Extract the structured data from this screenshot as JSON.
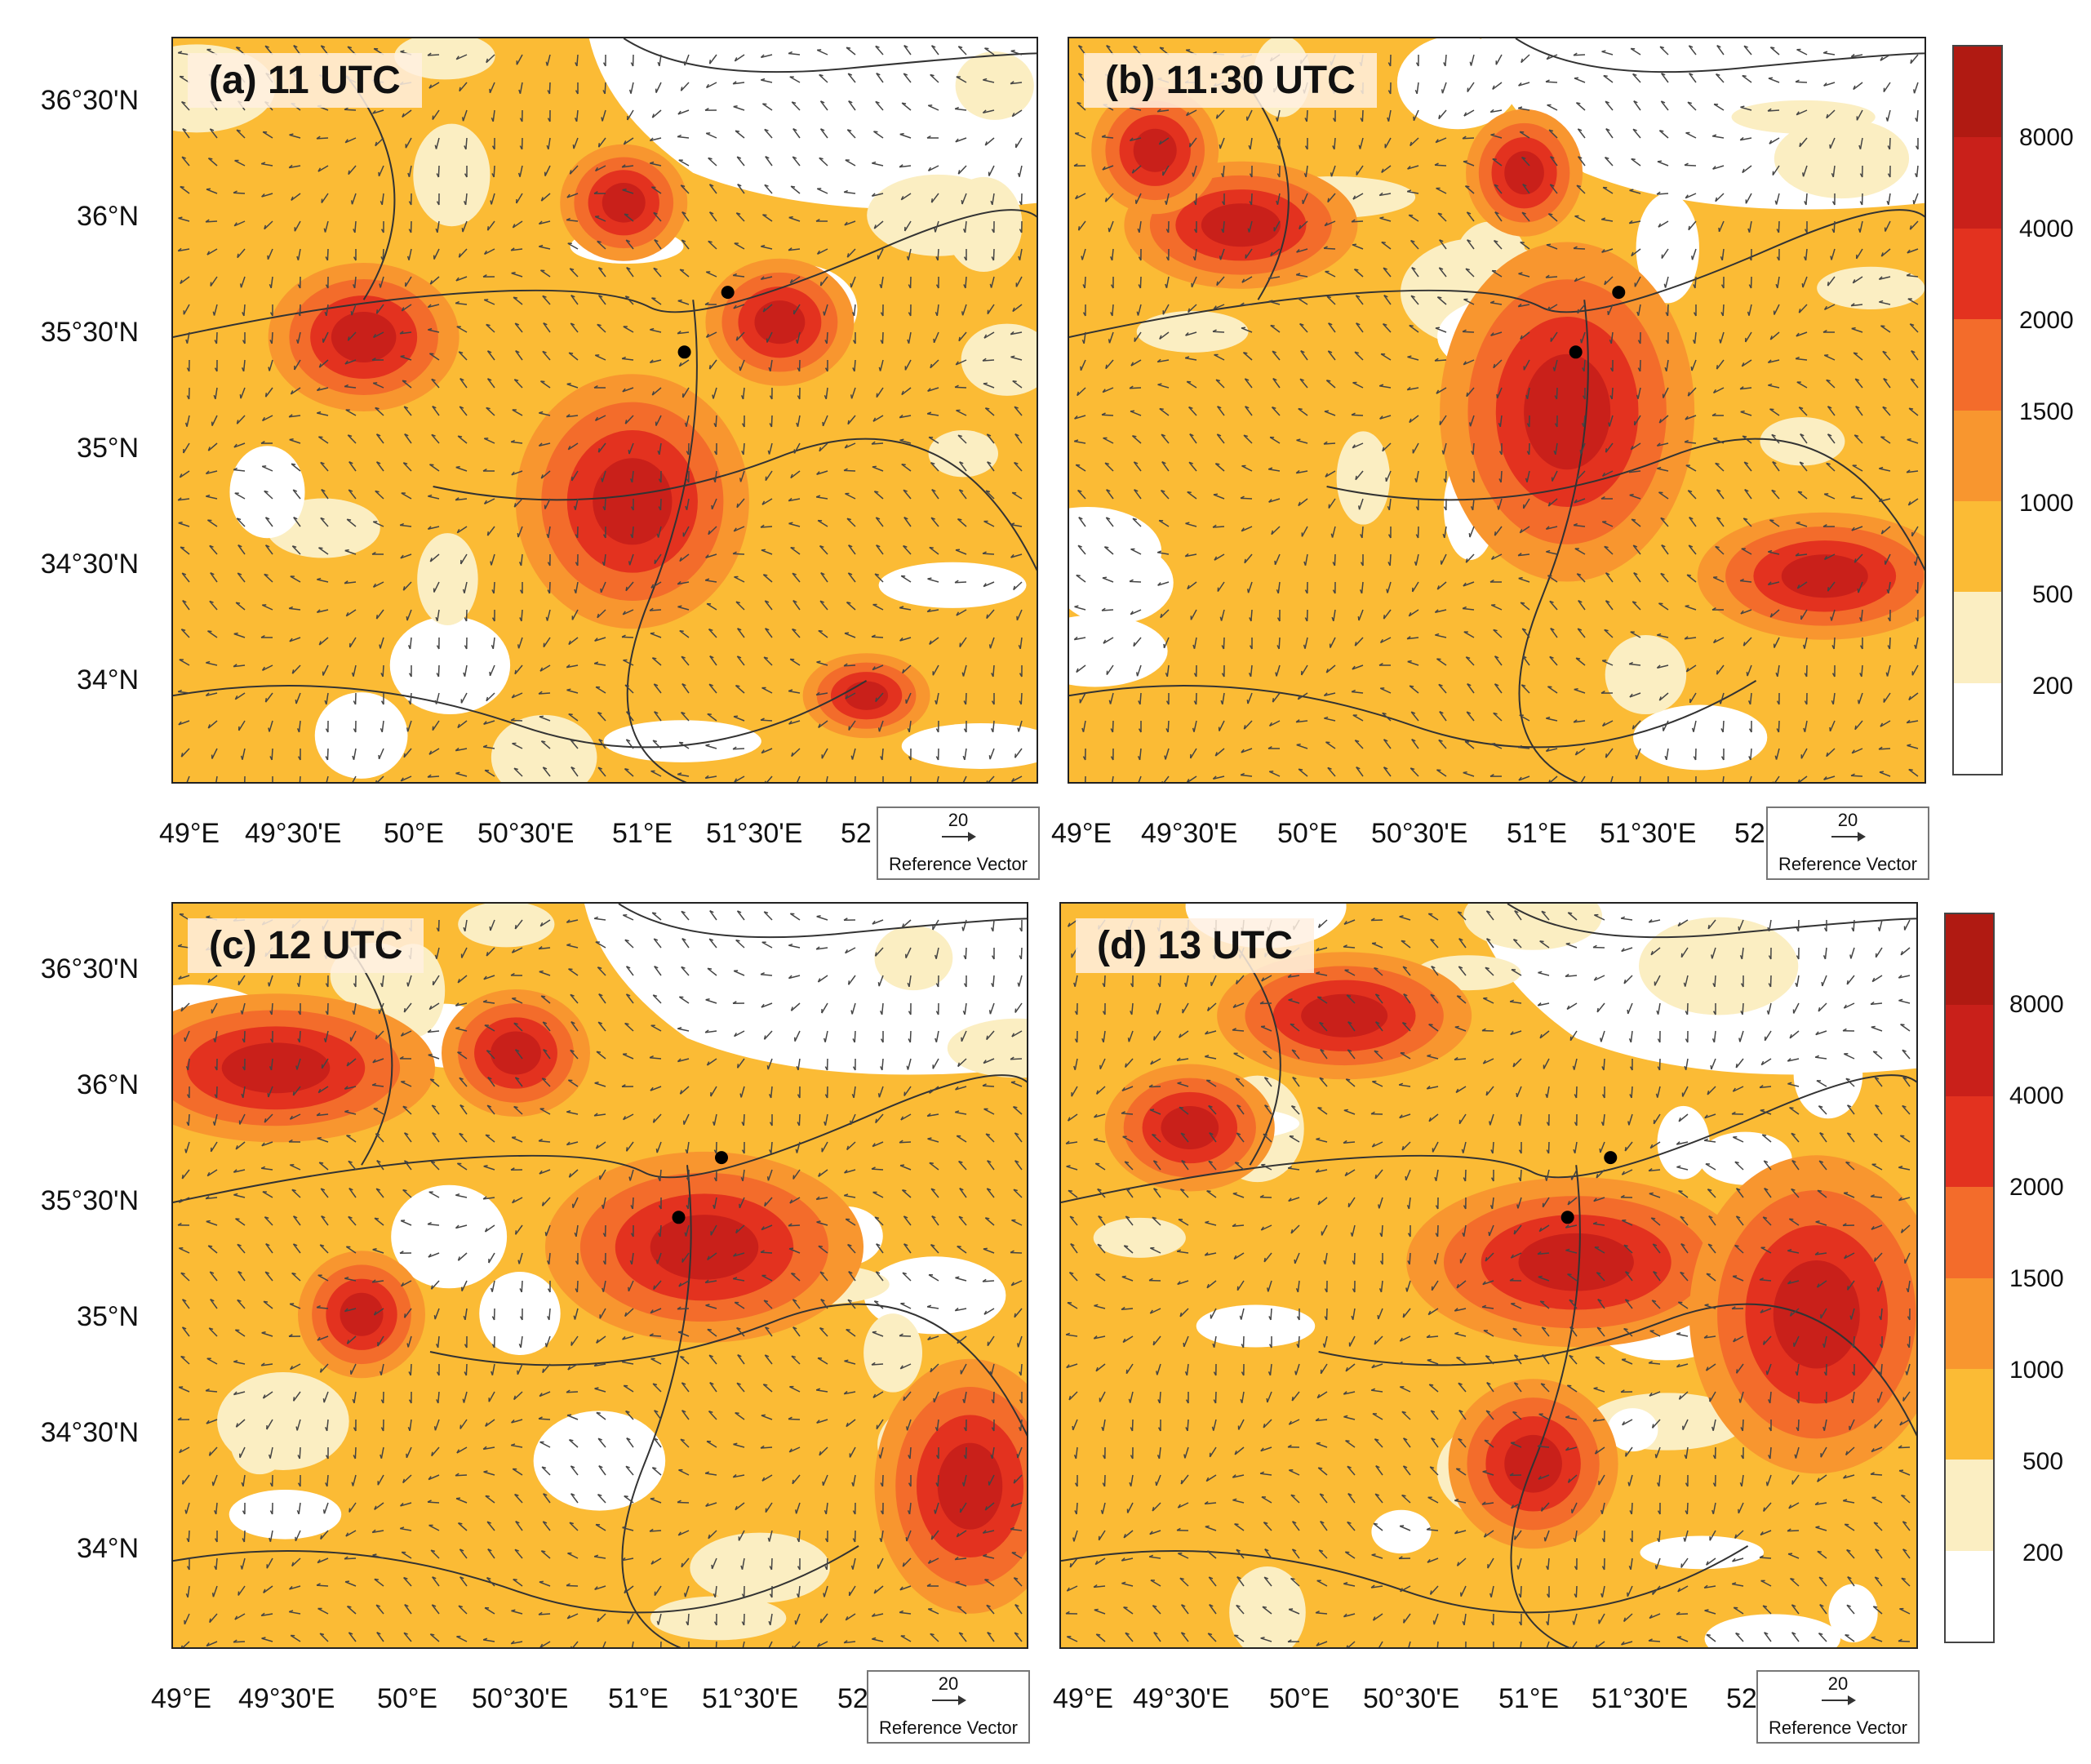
{
  "panels": [
    {
      "title": "(a) 11 UTC"
    },
    {
      "title": "(b) 11:30 UTC"
    },
    {
      "title": "(c) 12 UTC"
    },
    {
      "title": "(d) 13 UTC"
    }
  ],
  "lat_labels": [
    "36°30'N",
    "36°N",
    "35°30'N",
    "35°N",
    "34°30'N",
    "34°N"
  ],
  "lon_labels": [
    "49°E",
    "49°30'E",
    "50°E",
    "50°30'E",
    "51°E",
    "51°30'E",
    "52"
  ],
  "reference_vector": {
    "value": "20",
    "label": "Reference Vector"
  },
  "colorbar": {
    "labels": [
      "8000",
      "4000",
      "2000",
      "1500",
      "1000",
      "500",
      "200"
    ],
    "colors": [
      "#c9201a",
      "#e3321f",
      "#f36c2b",
      "#f8962f",
      "#fbbb35",
      "#fbeec2",
      "#ffffff"
    ]
  }
}
